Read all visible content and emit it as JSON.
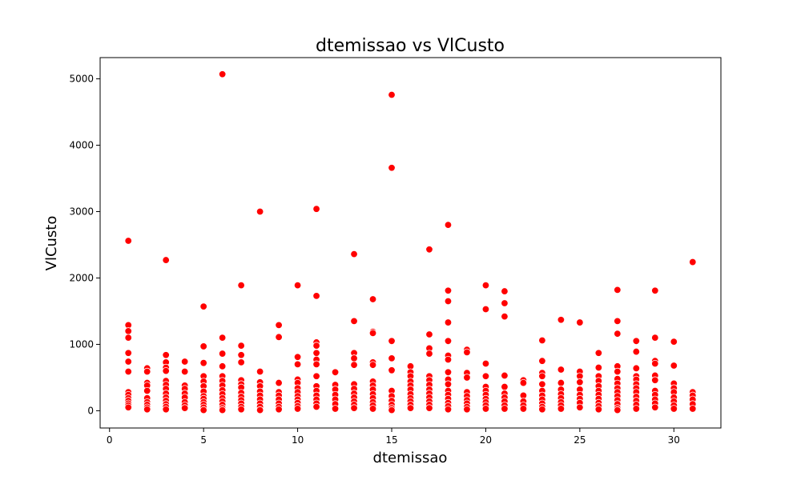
{
  "chart_data": {
    "type": "scatter",
    "title": "dtemissao vs VlCusto",
    "xlabel": "dtemissao",
    "ylabel": "VlCusto",
    "xlim": [
      -0.5,
      32.5
    ],
    "ylim": [
      -260,
      5320
    ],
    "xticks": [
      0,
      5,
      10,
      15,
      20,
      25,
      30
    ],
    "yticks": [
      0,
      1000,
      2000,
      3000,
      4000,
      5000
    ],
    "grid": false,
    "marker_color": "#ff0000",
    "marker_edge_color": "#ffffff",
    "points": [
      [
        1,
        2560
      ],
      [
        1,
        1290
      ],
      [
        1,
        1200
      ],
      [
        1,
        1100
      ],
      [
        1,
        870
      ],
      [
        1,
        740
      ],
      [
        1,
        590
      ],
      [
        1,
        280
      ],
      [
        1,
        240
      ],
      [
        1,
        190
      ],
      [
        1,
        150
      ],
      [
        1,
        110
      ],
      [
        1,
        80
      ],
      [
        1,
        50
      ],
      [
        2,
        640
      ],
      [
        2,
        590
      ],
      [
        2,
        420
      ],
      [
        2,
        380
      ],
      [
        2,
        300
      ],
      [
        2,
        190
      ],
      [
        2,
        130
      ],
      [
        2,
        90
      ],
      [
        2,
        50
      ],
      [
        2,
        20
      ],
      [
        3,
        2270
      ],
      [
        3,
        840
      ],
      [
        3,
        730
      ],
      [
        3,
        650
      ],
      [
        3,
        600
      ],
      [
        3,
        450
      ],
      [
        3,
        390
      ],
      [
        3,
        330
      ],
      [
        3,
        260
      ],
      [
        3,
        200
      ],
      [
        3,
        150
      ],
      [
        3,
        100
      ],
      [
        3,
        60
      ],
      [
        3,
        20
      ],
      [
        4,
        740
      ],
      [
        4,
        590
      ],
      [
        4,
        380
      ],
      [
        4,
        330
      ],
      [
        4,
        260
      ],
      [
        4,
        200
      ],
      [
        4,
        130
      ],
      [
        4,
        80
      ],
      [
        4,
        40
      ],
      [
        5,
        1570
      ],
      [
        5,
        970
      ],
      [
        5,
        720
      ],
      [
        5,
        520
      ],
      [
        5,
        440
      ],
      [
        5,
        370
      ],
      [
        5,
        290
      ],
      [
        5,
        220
      ],
      [
        5,
        180
      ],
      [
        5,
        130
      ],
      [
        5,
        90
      ],
      [
        5,
        50
      ],
      [
        5,
        10
      ],
      [
        6,
        5070
      ],
      [
        6,
        1100
      ],
      [
        6,
        860
      ],
      [
        6,
        670
      ],
      [
        6,
        520
      ],
      [
        6,
        450
      ],
      [
        6,
        380
      ],
      [
        6,
        310
      ],
      [
        6,
        250
      ],
      [
        6,
        190
      ],
      [
        6,
        140
      ],
      [
        6,
        90
      ],
      [
        6,
        40
      ],
      [
        6,
        10
      ],
      [
        7,
        1890
      ],
      [
        7,
        980
      ],
      [
        7,
        840
      ],
      [
        7,
        730
      ],
      [
        7,
        460
      ],
      [
        7,
        400
      ],
      [
        7,
        350
      ],
      [
        7,
        270
      ],
      [
        7,
        210
      ],
      [
        7,
        160
      ],
      [
        7,
        110
      ],
      [
        7,
        60
      ],
      [
        7,
        20
      ],
      [
        8,
        3000
      ],
      [
        8,
        590
      ],
      [
        8,
        430
      ],
      [
        8,
        370
      ],
      [
        8,
        290
      ],
      [
        8,
        230
      ],
      [
        8,
        170
      ],
      [
        8,
        110
      ],
      [
        8,
        60
      ],
      [
        8,
        10
      ],
      [
        9,
        1290
      ],
      [
        9,
        1110
      ],
      [
        9,
        420
      ],
      [
        9,
        280
      ],
      [
        9,
        230
      ],
      [
        9,
        170
      ],
      [
        9,
        110
      ],
      [
        9,
        60
      ],
      [
        9,
        20
      ],
      [
        10,
        1890
      ],
      [
        10,
        810
      ],
      [
        10,
        700
      ],
      [
        10,
        470
      ],
      [
        10,
        420
      ],
      [
        10,
        340
      ],
      [
        10,
        280
      ],
      [
        10,
        220
      ],
      [
        10,
        170
      ],
      [
        10,
        120
      ],
      [
        10,
        70
      ],
      [
        10,
        30
      ],
      [
        11,
        3040
      ],
      [
        11,
        1730
      ],
      [
        11,
        1030
      ],
      [
        11,
        980
      ],
      [
        11,
        870
      ],
      [
        11,
        770
      ],
      [
        11,
        700
      ],
      [
        11,
        520
      ],
      [
        11,
        370
      ],
      [
        11,
        300
      ],
      [
        11,
        230
      ],
      [
        11,
        170
      ],
      [
        11,
        110
      ],
      [
        11,
        60
      ],
      [
        12,
        580
      ],
      [
        12,
        390
      ],
      [
        12,
        320
      ],
      [
        12,
        240
      ],
      [
        12,
        170
      ],
      [
        12,
        100
      ],
      [
        12,
        30
      ],
      [
        13,
        2360
      ],
      [
        13,
        1350
      ],
      [
        13,
        870
      ],
      [
        13,
        790
      ],
      [
        13,
        690
      ],
      [
        13,
        400
      ],
      [
        13,
        330
      ],
      [
        13,
        260
      ],
      [
        13,
        200
      ],
      [
        13,
        140
      ],
      [
        13,
        90
      ],
      [
        13,
        40
      ],
      [
        14,
        1680
      ],
      [
        14,
        1190
      ],
      [
        14,
        1170
      ],
      [
        14,
        730
      ],
      [
        14,
        690
      ],
      [
        14,
        440
      ],
      [
        14,
        380
      ],
      [
        14,
        320
      ],
      [
        14,
        250
      ],
      [
        14,
        190
      ],
      [
        14,
        130
      ],
      [
        14,
        80
      ],
      [
        14,
        30
      ],
      [
        15,
        4760
      ],
      [
        15,
        3660
      ],
      [
        15,
        1050
      ],
      [
        15,
        790
      ],
      [
        15,
        610
      ],
      [
        15,
        300
      ],
      [
        15,
        220
      ],
      [
        15,
        150
      ],
      [
        15,
        90
      ],
      [
        15,
        40
      ],
      [
        15,
        10
      ],
      [
        16,
        670
      ],
      [
        16,
        580
      ],
      [
        16,
        520
      ],
      [
        16,
        440
      ],
      [
        16,
        380
      ],
      [
        16,
        320
      ],
      [
        16,
        250
      ],
      [
        16,
        190
      ],
      [
        16,
        140
      ],
      [
        16,
        90
      ],
      [
        16,
        40
      ],
      [
        17,
        2430
      ],
      [
        17,
        1150
      ],
      [
        17,
        940
      ],
      [
        17,
        860
      ],
      [
        17,
        520
      ],
      [
        17,
        460
      ],
      [
        17,
        390
      ],
      [
        17,
        320
      ],
      [
        17,
        260
      ],
      [
        17,
        200
      ],
      [
        17,
        140
      ],
      [
        17,
        90
      ],
      [
        17,
        40
      ],
      [
        18,
        2800
      ],
      [
        18,
        1810
      ],
      [
        18,
        1650
      ],
      [
        18,
        1330
      ],
      [
        18,
        1050
      ],
      [
        18,
        830
      ],
      [
        18,
        770
      ],
      [
        18,
        580
      ],
      [
        18,
        470
      ],
      [
        18,
        400
      ],
      [
        18,
        300
      ],
      [
        18,
        240
      ],
      [
        18,
        180
      ],
      [
        18,
        120
      ],
      [
        18,
        70
      ],
      [
        18,
        20
      ],
      [
        19,
        920
      ],
      [
        19,
        880
      ],
      [
        19,
        570
      ],
      [
        19,
        500
      ],
      [
        19,
        280
      ],
      [
        19,
        220
      ],
      [
        19,
        160
      ],
      [
        19,
        110
      ],
      [
        19,
        60
      ],
      [
        19,
        20
      ],
      [
        20,
        1890
      ],
      [
        20,
        1530
      ],
      [
        20,
        710
      ],
      [
        20,
        520
      ],
      [
        20,
        360
      ],
      [
        20,
        300
      ],
      [
        20,
        240
      ],
      [
        20,
        180
      ],
      [
        20,
        130
      ],
      [
        20,
        80
      ],
      [
        20,
        30
      ],
      [
        21,
        1800
      ],
      [
        21,
        1620
      ],
      [
        21,
        1420
      ],
      [
        21,
        530
      ],
      [
        21,
        360
      ],
      [
        21,
        260
      ],
      [
        21,
        200
      ],
      [
        21,
        140
      ],
      [
        21,
        80
      ],
      [
        21,
        30
      ],
      [
        22,
        460
      ],
      [
        22,
        420
      ],
      [
        22,
        230
      ],
      [
        22,
        140
      ],
      [
        22,
        80
      ],
      [
        22,
        30
      ],
      [
        23,
        1060
      ],
      [
        23,
        750
      ],
      [
        23,
        570
      ],
      [
        23,
        520
      ],
      [
        23,
        400
      ],
      [
        23,
        300
      ],
      [
        23,
        230
      ],
      [
        23,
        170
      ],
      [
        23,
        110
      ],
      [
        23,
        60
      ],
      [
        23,
        20
      ],
      [
        24,
        1370
      ],
      [
        24,
        620
      ],
      [
        24,
        420
      ],
      [
        24,
        320
      ],
      [
        24,
        250
      ],
      [
        24,
        190
      ],
      [
        24,
        130
      ],
      [
        24,
        80
      ],
      [
        24,
        30
      ],
      [
        25,
        1330
      ],
      [
        25,
        590
      ],
      [
        25,
        520
      ],
      [
        25,
        430
      ],
      [
        25,
        320
      ],
      [
        25,
        240
      ],
      [
        25,
        180
      ],
      [
        25,
        120
      ],
      [
        25,
        50
      ],
      [
        26,
        870
      ],
      [
        26,
        650
      ],
      [
        26,
        520
      ],
      [
        26,
        450
      ],
      [
        26,
        370
      ],
      [
        26,
        300
      ],
      [
        26,
        240
      ],
      [
        26,
        180
      ],
      [
        26,
        120
      ],
      [
        26,
        70
      ],
      [
        26,
        20
      ],
      [
        27,
        1820
      ],
      [
        27,
        1350
      ],
      [
        27,
        1160
      ],
      [
        27,
        670
      ],
      [
        27,
        590
      ],
      [
        27,
        480
      ],
      [
        27,
        410
      ],
      [
        27,
        340
      ],
      [
        27,
        280
      ],
      [
        27,
        220
      ],
      [
        27,
        160
      ],
      [
        27,
        100
      ],
      [
        27,
        40
      ],
      [
        27,
        10
      ],
      [
        28,
        1050
      ],
      [
        28,
        890
      ],
      [
        28,
        640
      ],
      [
        28,
        520
      ],
      [
        28,
        470
      ],
      [
        28,
        400
      ],
      [
        28,
        340
      ],
      [
        28,
        280
      ],
      [
        28,
        210
      ],
      [
        28,
        150
      ],
      [
        28,
        90
      ],
      [
        28,
        30
      ],
      [
        29,
        1810
      ],
      [
        29,
        1100
      ],
      [
        29,
        750
      ],
      [
        29,
        710
      ],
      [
        29,
        530
      ],
      [
        29,
        460
      ],
      [
        29,
        300
      ],
      [
        29,
        240
      ],
      [
        29,
        170
      ],
      [
        29,
        110
      ],
      [
        29,
        50
      ],
      [
        30,
        1040
      ],
      [
        30,
        680
      ],
      [
        30,
        410
      ],
      [
        30,
        340
      ],
      [
        30,
        280
      ],
      [
        30,
        200
      ],
      [
        30,
        140
      ],
      [
        30,
        80
      ],
      [
        30,
        30
      ],
      [
        31,
        2240
      ],
      [
        31,
        280
      ],
      [
        31,
        230
      ],
      [
        31,
        170
      ],
      [
        31,
        100
      ],
      [
        31,
        30
      ]
    ]
  }
}
